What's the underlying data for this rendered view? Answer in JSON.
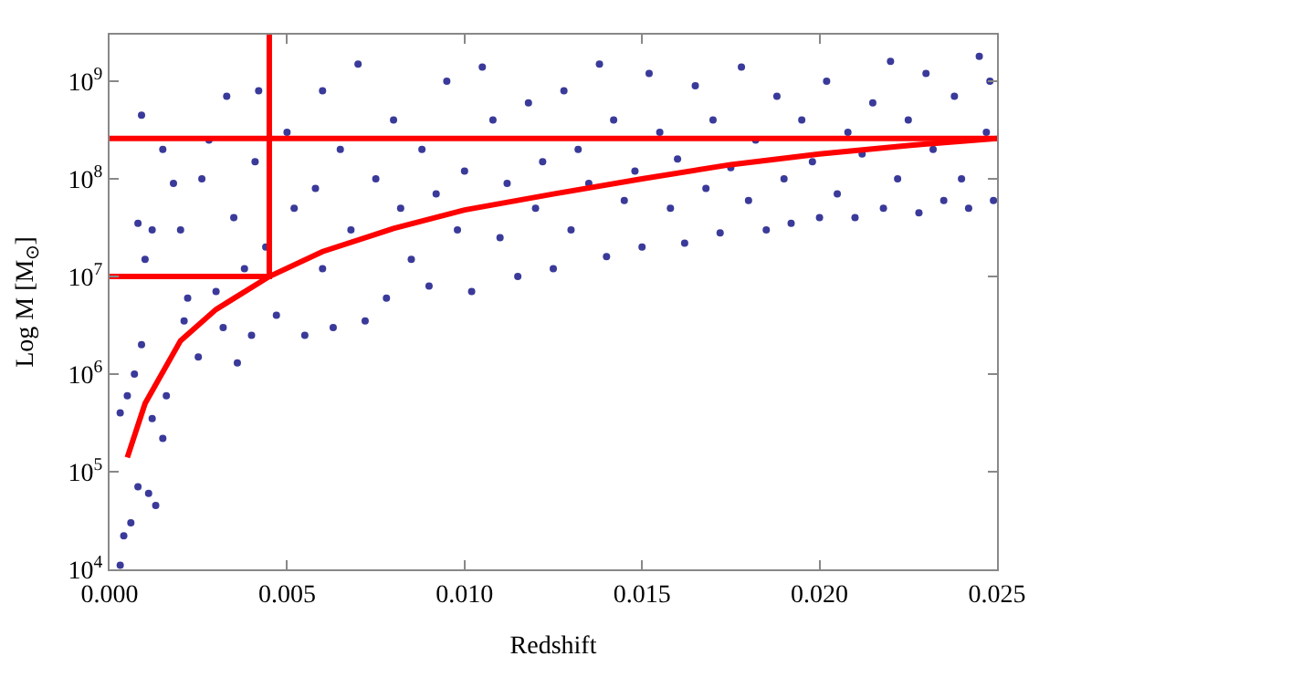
{
  "chart_data": {
    "type": "scatter",
    "xlabel": "Redshift",
    "ylabel": "Log M [M$_{⊙}$]",
    "log": "y",
    "xlim": [
      0,
      0.025
    ],
    "ylim": [
      10000,
      3000000000
    ],
    "xticks": [
      {
        "value": 0,
        "label": "0.000"
      },
      {
        "value": 0.005,
        "label": "0.005"
      },
      {
        "value": 0.01,
        "label": "0.010"
      },
      {
        "value": 0.015,
        "label": "0.015"
      },
      {
        "value": 0.02,
        "label": "0.020"
      },
      {
        "value": 0.025,
        "label": "0.025"
      }
    ],
    "yticks": [
      {
        "value": 10000,
        "label": "10$^{4}$"
      },
      {
        "value": 100000,
        "label": "10$^{5}$"
      },
      {
        "value": 1000000,
        "label": "10$^{6}$"
      },
      {
        "value": 10000000,
        "label": "10$^{7}$"
      },
      {
        "value": 100000000,
        "label": "10$^{8}$"
      },
      {
        "value": 1000000000,
        "label": "10$^{9}$"
      }
    ],
    "ref_lines": [
      {
        "axis": "y",
        "value": 260000000,
        "color": "#ff0000",
        "line_style": "solid"
      }
    ],
    "series": [
      {
        "type": "scatter",
        "marker": "circle",
        "color": "#3a3a9a",
        "x": [
          0.0003,
          0.0004,
          0.0006,
          0.0003,
          0.0005,
          0.0008,
          0.0011,
          0.0013,
          0.0009,
          0.0007,
          0.0012,
          0.0015,
          0.0016,
          0.001,
          0.0008,
          0.0012,
          0.0009,
          0.0015,
          0.0018,
          0.002,
          0.0022,
          0.0025,
          0.0021,
          0.0026,
          0.0028,
          0.003,
          0.0032,
          0.0033,
          0.0035,
          0.0036,
          0.0038,
          0.004,
          0.0042,
          0.0041,
          0.0044,
          0.0047,
          0.005,
          0.0052,
          0.0055,
          0.0058,
          0.006,
          0.006,
          0.0063,
          0.0065,
          0.0068,
          0.007,
          0.0072,
          0.0075,
          0.0078,
          0.008,
          0.0082,
          0.0085,
          0.0088,
          0.009,
          0.0092,
          0.0095,
          0.0098,
          0.01,
          0.0102,
          0.0105,
          0.0108,
          0.011,
          0.0112,
          0.0115,
          0.0118,
          0.012,
          0.0122,
          0.0125,
          0.0128,
          0.013,
          0.0132,
          0.0135,
          0.0138,
          0.014,
          0.0142,
          0.0145,
          0.0148,
          0.015,
          0.0152,
          0.0155,
          0.0158,
          0.016,
          0.0162,
          0.0165,
          0.0168,
          0.017,
          0.0172,
          0.0175,
          0.0178,
          0.018,
          0.0182,
          0.0185,
          0.0188,
          0.019,
          0.0192,
          0.0195,
          0.0198,
          0.02,
          0.0202,
          0.0205,
          0.0208,
          0.021,
          0.0212,
          0.0215,
          0.0218,
          0.022,
          0.0222,
          0.0225,
          0.0228,
          0.023,
          0.0232,
          0.0235,
          0.0238,
          0.024,
          0.0242,
          0.0245,
          0.0247,
          0.0249,
          0.0248
        ],
        "values": [
          11000,
          22000,
          30000,
          400000,
          600000,
          70000,
          60000,
          45000,
          2000000,
          1000000,
          350000,
          220000,
          600000,
          15000000,
          35000000,
          30000000,
          450000000,
          200000000,
          90000000,
          30000000,
          6000000,
          1500000,
          3500000,
          100000000,
          250000000,
          7000000,
          3000000,
          700000000,
          40000000,
          1300000,
          12000000,
          2500000,
          800000000,
          150000000,
          20000000,
          4000000,
          300000000,
          50000000,
          2500000,
          80000000,
          800000000,
          12000000,
          3000000,
          200000000,
          30000000,
          1500000000,
          3500000,
          100000000,
          6000000,
          400000000,
          50000000,
          15000000,
          200000000,
          8000000,
          70000000,
          1000000000,
          30000000,
          120000000,
          7000000,
          1400000000,
          400000000,
          25000000,
          90000000,
          10000000,
          600000000,
          50000000,
          150000000,
          12000000,
          800000000,
          30000000,
          200000000,
          90000000,
          1500000000,
          16000000,
          400000000,
          60000000,
          120000000,
          20000000,
          1200000000,
          300000000,
          50000000,
          160000000,
          22000000,
          900000000,
          80000000,
          400000000,
          28000000,
          130000000,
          1400000000,
          60000000,
          250000000,
          30000000,
          700000000,
          100000000,
          35000000,
          400000000,
          150000000,
          40000000,
          1000000000,
          70000000,
          300000000,
          40000000,
          180000000,
          600000000,
          50000000,
          1600000000,
          100000000,
          400000000,
          45000000,
          1200000000,
          200000000,
          60000000,
          700000000,
          100000000,
          50000000,
          1800000000,
          300000000,
          60000000,
          1000000000
        ]
      },
      {
        "type": "line",
        "marker": "none",
        "line_style": "solid",
        "color": "#ff0000",
        "x": [
          0.0005,
          0.001,
          0.002,
          0.003,
          0.0045,
          0.006,
          0.008,
          0.01,
          0.0125,
          0.015,
          0.0175,
          0.02,
          0.0225,
          0.025
        ],
        "values": [
          140000,
          500000,
          2200000,
          4600000,
          10000000,
          18000000,
          31000000,
          48000000,
          70000000,
          100000000,
          140000000,
          180000000,
          220000000,
          260000000
        ]
      },
      {
        "type": "line",
        "marker": "none",
        "line_style": "solid",
        "color": "#ff0000",
        "x": [
          0,
          0.0045,
          0.0045
        ],
        "values": [
          10000000,
          10000000,
          3000000000
        ]
      }
    ]
  }
}
